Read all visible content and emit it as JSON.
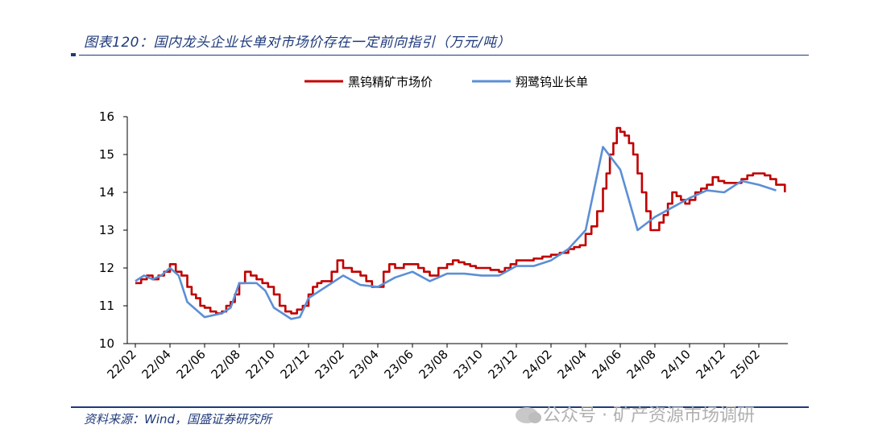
{
  "figure": {
    "title": "图表120：国内龙头企业长单对市场价存在一定前向指引（万元/吨）",
    "source": "资料来源：Wind，国盛证券研究所",
    "watermark": "公众号 · 矿产资源市场调研"
  },
  "chart_data": {
    "type": "line",
    "title": "",
    "xlabel": "",
    "ylabel": "",
    "ylim": [
      10,
      16
    ],
    "yticks": [
      "10",
      "11",
      "12",
      "13",
      "14",
      "15",
      "16"
    ],
    "xticks": [
      "22/02",
      "22/04",
      "22/06",
      "22/08",
      "22/10",
      "22/12",
      "23/02",
      "23/04",
      "23/06",
      "23/08",
      "23/10",
      "23/12",
      "24/02",
      "24/04",
      "24/06",
      "24/08",
      "24/10",
      "24/12",
      "25/02"
    ],
    "legend_position": "top",
    "grid": false,
    "series": [
      {
        "name": "黑钨精矿市场价",
        "color": "#c00000",
        "style": "step",
        "points": [
          [
            "22/02",
            11.6
          ],
          [
            "22/02",
            11.7
          ],
          [
            "22/02",
            11.8
          ],
          [
            "22/03",
            11.7
          ],
          [
            "22/03",
            11.8
          ],
          [
            "22/03",
            11.9
          ],
          [
            "22/04",
            12.1
          ],
          [
            "22/04",
            11.9
          ],
          [
            "22/04",
            11.8
          ],
          [
            "22/05",
            11.5
          ],
          [
            "22/05",
            11.3
          ],
          [
            "22/05",
            11.2
          ],
          [
            "22/05",
            11.0
          ],
          [
            "22/06",
            10.95
          ],
          [
            "22/06",
            10.85
          ],
          [
            "22/06",
            10.8
          ],
          [
            "22/07",
            10.85
          ],
          [
            "22/07",
            11.0
          ],
          [
            "22/07",
            11.1
          ],
          [
            "22/07",
            11.3
          ],
          [
            "22/08",
            11.6
          ],
          [
            "22/08",
            11.9
          ],
          [
            "22/08",
            11.8
          ],
          [
            "22/09",
            11.7
          ],
          [
            "22/09",
            11.6
          ],
          [
            "22/09",
            11.5
          ],
          [
            "22/10",
            11.3
          ],
          [
            "22/10",
            11.0
          ],
          [
            "22/10",
            10.85
          ],
          [
            "22/11",
            10.8
          ],
          [
            "22/11",
            10.9
          ],
          [
            "22/11",
            11.0
          ],
          [
            "22/12",
            11.3
          ],
          [
            "22/12",
            11.5
          ],
          [
            "22/12",
            11.6
          ],
          [
            "22/12",
            11.65
          ],
          [
            "23/01",
            11.65
          ],
          [
            "23/01",
            11.9
          ],
          [
            "23/01",
            12.2
          ],
          [
            "23/02",
            12.0
          ],
          [
            "23/02",
            11.9
          ],
          [
            "23/03",
            11.8
          ],
          [
            "23/03",
            11.65
          ],
          [
            "23/03",
            11.5
          ],
          [
            "23/04",
            11.5
          ],
          [
            "23/04",
            11.9
          ],
          [
            "23/04",
            12.1
          ],
          [
            "23/05",
            12.0
          ],
          [
            "23/05",
            12.1
          ],
          [
            "23/06",
            12.1
          ],
          [
            "23/06",
            12.0
          ],
          [
            "23/06",
            11.9
          ],
          [
            "23/07",
            11.8
          ],
          [
            "23/07",
            12.0
          ],
          [
            "23/08",
            12.1
          ],
          [
            "23/08",
            12.2
          ],
          [
            "23/08",
            12.15
          ],
          [
            "23/09",
            12.1
          ],
          [
            "23/09",
            12.05
          ],
          [
            "23/09",
            12.0
          ],
          [
            "23/10",
            12.0
          ],
          [
            "23/10",
            11.95
          ],
          [
            "23/11",
            11.9
          ],
          [
            "23/11",
            12.0
          ],
          [
            "23/11",
            12.1
          ],
          [
            "23/12",
            12.2
          ],
          [
            "23/12",
            12.2
          ],
          [
            "24/01",
            12.25
          ],
          [
            "24/01",
            12.3
          ],
          [
            "24/02",
            12.35
          ],
          [
            "24/02",
            12.4
          ],
          [
            "24/03",
            12.5
          ],
          [
            "24/03",
            12.55
          ],
          [
            "24/03",
            12.6
          ],
          [
            "24/04",
            12.9
          ],
          [
            "24/04",
            13.1
          ],
          [
            "24/04",
            13.5
          ],
          [
            "24/05",
            14.1
          ],
          [
            "24/05",
            14.5
          ],
          [
            "24/05",
            15.0
          ],
          [
            "24/05",
            15.3
          ],
          [
            "24/05",
            15.7
          ],
          [
            "24/06",
            15.6
          ],
          [
            "24/06",
            15.5
          ],
          [
            "24/06",
            15.3
          ],
          [
            "24/06",
            15.0
          ],
          [
            "24/07",
            14.5
          ],
          [
            "24/07",
            14.0
          ],
          [
            "24/07",
            13.5
          ],
          [
            "24/07",
            13.0
          ],
          [
            "24/08",
            13.0
          ],
          [
            "24/08",
            13.2
          ],
          [
            "24/08",
            13.4
          ],
          [
            "24/08",
            13.7
          ],
          [
            "24/09",
            14.0
          ],
          [
            "24/09",
            13.9
          ],
          [
            "24/09",
            13.8
          ],
          [
            "24/09",
            13.7
          ],
          [
            "24/10",
            13.8
          ],
          [
            "24/10",
            14.0
          ],
          [
            "24/10",
            14.1
          ],
          [
            "24/11",
            14.2
          ],
          [
            "24/11",
            14.4
          ],
          [
            "24/11",
            14.3
          ],
          [
            "24/12",
            14.25
          ],
          [
            "24/12",
            14.25
          ],
          [
            "25/01",
            14.35
          ],
          [
            "25/01",
            14.45
          ],
          [
            "25/01",
            14.5
          ],
          [
            "25/02",
            14.5
          ],
          [
            "25/02",
            14.45
          ],
          [
            "25/02",
            14.35
          ],
          [
            "25/03",
            14.2
          ],
          [
            "25/03",
            14.0
          ]
        ]
      },
      {
        "name": "翔鹭钨业长单",
        "color": "#5b8fd6",
        "style": "line",
        "points": [
          [
            "22/02",
            11.65
          ],
          [
            "22/02",
            11.8
          ],
          [
            "22/03",
            11.7
          ],
          [
            "22/03",
            11.8
          ],
          [
            "22/04",
            12.0
          ],
          [
            "22/04",
            11.8
          ],
          [
            "22/05",
            11.1
          ],
          [
            "22/06",
            10.7
          ],
          [
            "22/07",
            10.8
          ],
          [
            "22/07",
            10.95
          ],
          [
            "22/08",
            11.6
          ],
          [
            "22/09",
            11.6
          ],
          [
            "22/09",
            11.4
          ],
          [
            "22/10",
            10.95
          ],
          [
            "22/11",
            10.65
          ],
          [
            "22/11",
            10.7
          ],
          [
            "22/12",
            11.2
          ],
          [
            "23/01",
            11.5
          ],
          [
            "23/02",
            11.8
          ],
          [
            "23/03",
            11.55
          ],
          [
            "23/04",
            11.5
          ],
          [
            "23/05",
            11.75
          ],
          [
            "23/06",
            11.9
          ],
          [
            "23/07",
            11.65
          ],
          [
            "23/08",
            11.85
          ],
          [
            "23/09",
            11.85
          ],
          [
            "23/10",
            11.8
          ],
          [
            "23/11",
            11.8
          ],
          [
            "23/12",
            12.05
          ],
          [
            "24/01",
            12.05
          ],
          [
            "24/02",
            12.2
          ],
          [
            "24/03",
            12.5
          ],
          [
            "24/04",
            13.0
          ],
          [
            "24/05",
            15.2
          ],
          [
            "24/06",
            14.6
          ],
          [
            "24/07",
            13.0
          ],
          [
            "24/08",
            13.35
          ],
          [
            "24/09",
            13.6
          ],
          [
            "24/10",
            13.85
          ],
          [
            "24/11",
            14.05
          ],
          [
            "24/12",
            14.0
          ],
          [
            "25/01",
            14.3
          ],
          [
            "25/02",
            14.2
          ],
          [
            "25/03",
            14.05
          ]
        ]
      }
    ]
  }
}
